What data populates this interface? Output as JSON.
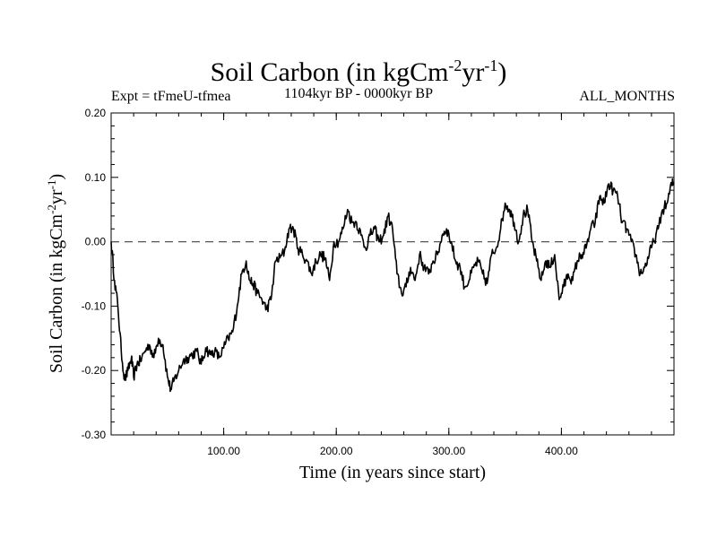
{
  "chart_data": {
    "type": "line",
    "title": {
      "main": "Soil Carbon (in kgCm",
      "sup1": "-2",
      "mid": "yr",
      "sup2": "-1",
      "close": ")"
    },
    "subtitle_left": "Expt = tFmeU-tfmea",
    "subtitle_center": "1104kyr BP - 0000kyr BP",
    "subtitle_right": "ALL_MONTHS",
    "xlabel": "Time (in years since start)",
    "ylabel": {
      "main": "Soil Carbon (in kgCm",
      "sup1": "-2",
      "mid": "yr",
      "sup2": "-1",
      "close": ")"
    },
    "xlim": [
      0,
      500
    ],
    "ylim": [
      -0.3,
      0.2
    ],
    "xticks": [
      100,
      200,
      300,
      400
    ],
    "xtick_labels": [
      "100.00",
      "200.00",
      "300.00",
      "400.00"
    ],
    "yticks": [
      0.2,
      0.1,
      0.0,
      -0.1,
      -0.2,
      -0.3
    ],
    "ytick_labels": [
      "0.20",
      "0.10",
      "0.00",
      "-0.10",
      "-0.20",
      "-0.30"
    ],
    "reference_line": {
      "y": 0.0,
      "style": "dashed"
    },
    "series": [
      {
        "name": "Soil Carbon",
        "x": [
          0,
          3,
          6,
          9,
          12,
          15,
          18,
          20,
          23,
          26,
          30,
          34,
          38,
          42,
          46,
          50,
          53,
          56,
          60,
          64,
          68,
          72,
          76,
          80,
          84,
          88,
          92,
          96,
          100,
          104,
          108,
          112,
          116,
          120,
          123,
          126,
          130,
          134,
          138,
          142,
          146,
          150,
          154,
          158,
          162,
          166,
          170,
          174,
          178,
          182,
          186,
          190,
          194,
          198,
          202,
          206,
          210,
          214,
          218,
          222,
          226,
          230,
          234,
          238,
          242,
          246,
          250,
          254,
          258,
          262,
          266,
          270,
          274,
          278,
          282,
          286,
          290,
          294,
          298,
          302,
          306,
          310,
          314,
          318,
          322,
          326,
          330,
          334,
          338,
          342,
          346,
          350,
          354,
          358,
          362,
          366,
          370,
          374,
          378,
          382,
          386,
          390,
          394,
          398,
          402,
          406,
          410,
          414,
          418,
          422,
          426,
          430,
          434,
          438,
          442,
          446,
          450,
          454,
          458,
          462,
          466,
          470,
          474,
          478,
          482,
          486,
          490,
          494,
          498,
          500
        ],
        "values": [
          0.0,
          -0.06,
          -0.1,
          -0.17,
          -0.215,
          -0.2,
          -0.18,
          -0.21,
          -0.19,
          -0.185,
          -0.17,
          -0.16,
          -0.18,
          -0.15,
          -0.16,
          -0.21,
          -0.23,
          -0.215,
          -0.2,
          -0.185,
          -0.18,
          -0.175,
          -0.17,
          -0.19,
          -0.165,
          -0.175,
          -0.17,
          -0.18,
          -0.165,
          -0.15,
          -0.14,
          -0.1,
          -0.05,
          -0.03,
          -0.06,
          -0.065,
          -0.08,
          -0.09,
          -0.105,
          -0.09,
          -0.03,
          -0.025,
          -0.015,
          0.02,
          0.02,
          -0.01,
          -0.02,
          -0.03,
          -0.05,
          -0.03,
          -0.02,
          -0.025,
          -0.06,
          0.0,
          0.0,
          0.02,
          0.05,
          0.03,
          0.03,
          0.01,
          -0.01,
          0.01,
          0.02,
          0.0,
          0.01,
          0.04,
          0.02,
          -0.05,
          -0.08,
          -0.07,
          -0.04,
          -0.06,
          -0.02,
          -0.04,
          -0.05,
          -0.03,
          -0.02,
          0.01,
          0.02,
          0.0,
          -0.03,
          -0.04,
          -0.07,
          -0.06,
          -0.04,
          -0.03,
          -0.05,
          -0.065,
          -0.02,
          -0.01,
          0.02,
          0.06,
          0.05,
          0.03,
          0.0,
          0.04,
          0.05,
          0.0,
          -0.03,
          -0.06,
          -0.03,
          -0.04,
          -0.02,
          -0.09,
          -0.07,
          -0.05,
          -0.06,
          -0.03,
          -0.02,
          -0.01,
          0.02,
          0.03,
          0.07,
          0.06,
          0.09,
          0.08,
          0.07,
          0.03,
          0.02,
          0.0,
          -0.02,
          -0.05,
          -0.04,
          -0.02,
          0.0,
          0.02,
          0.05,
          0.06,
          0.09,
          0.09
        ]
      }
    ]
  }
}
